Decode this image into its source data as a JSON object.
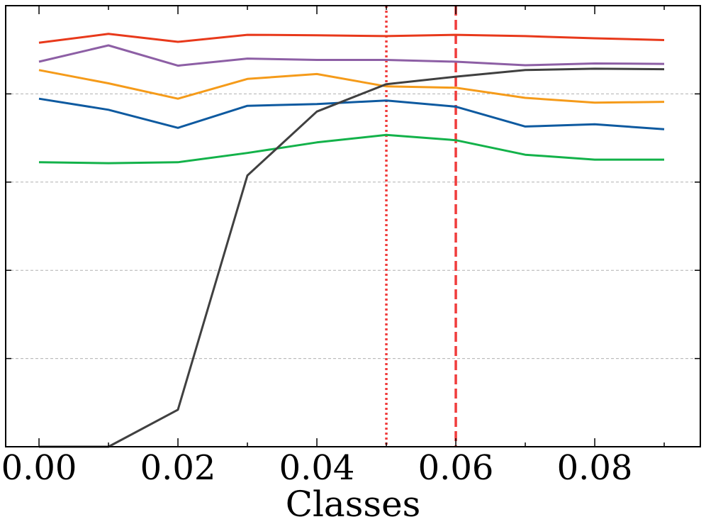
{
  "chart_data": {
    "type": "line",
    "xlabel": "Classes",
    "ylabel": "",
    "xlim": [
      -0.0048,
      0.0952
    ],
    "ylim": [
      0,
      1
    ],
    "xticks": [
      0.0,
      0.02,
      0.04,
      0.06,
      0.08
    ],
    "xtick_labels": [
      "0.00",
      "0.02",
      "0.04",
      "0.06",
      "0.08"
    ],
    "yticks_grid": [
      0.2,
      0.4,
      0.6,
      0.8
    ],
    "grid": "horizontal dashed",
    "x": [
      0.0,
      0.01,
      0.02,
      0.03,
      0.04,
      0.05,
      0.06,
      0.07,
      0.08,
      0.09
    ],
    "series": [
      {
        "color": "#e8391b",
        "values": [
          0.916,
          0.936,
          0.918,
          0.934,
          0.933,
          0.931,
          0.934,
          0.931,
          0.926,
          0.922
        ]
      },
      {
        "color": "#8d5fa5",
        "values": [
          0.873,
          0.91,
          0.864,
          0.88,
          0.877,
          0.877,
          0.873,
          0.865,
          0.869,
          0.868
        ]
      },
      {
        "color": "#f59b1a",
        "values": [
          0.854,
          0.824,
          0.789,
          0.834,
          0.845,
          0.817,
          0.814,
          0.791,
          0.78,
          0.782
        ]
      },
      {
        "color": "#0e5aa0",
        "values": [
          0.789,
          0.764,
          0.723,
          0.773,
          0.777,
          0.785,
          0.771,
          0.726,
          0.731,
          0.72
        ]
      },
      {
        "color": "#13b24a",
        "values": [
          0.645,
          0.643,
          0.645,
          0.666,
          0.69,
          0.707,
          0.695,
          0.662,
          0.651,
          0.651
        ]
      },
      {
        "color": "#404040",
        "values": [
          0.0,
          0.0,
          0.084,
          0.615,
          0.76,
          0.822,
          0.839,
          0.854,
          0.857,
          0.856
        ]
      }
    ],
    "vlines": [
      {
        "x": 0.05,
        "style": "dotted",
        "color": "#f03c3c"
      },
      {
        "x": 0.06,
        "style": "dashed",
        "color": "#f03c3c"
      }
    ]
  }
}
